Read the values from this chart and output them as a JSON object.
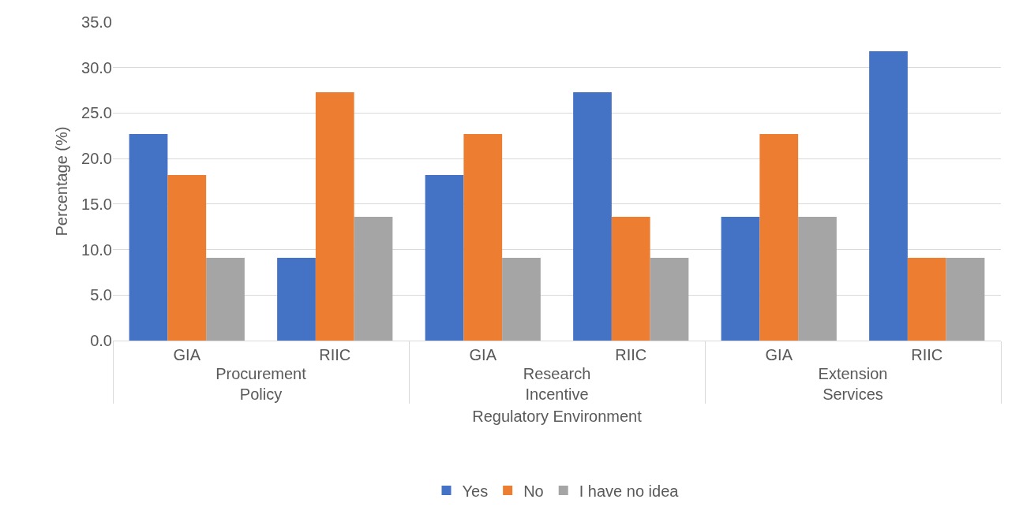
{
  "chart_data": {
    "type": "bar",
    "categories": [
      "GIA",
      "RIIC",
      "GIA",
      "RIIC",
      "GIA",
      "RIIC"
    ],
    "series": [
      {
        "name": "Yes",
        "color": "#4472c4",
        "values": [
          22.7,
          9.1,
          18.2,
          27.3,
          13.6,
          31.8
        ]
      },
      {
        "name": "No",
        "color": "#ed7d31",
        "values": [
          18.2,
          27.3,
          22.7,
          13.6,
          22.7,
          9.1
        ]
      },
      {
        "name": "I have no idea",
        "color": "#a5a5a5",
        "values": [
          9.1,
          13.6,
          9.1,
          9.1,
          13.6,
          9.1
        ]
      }
    ],
    "xlabel": "Regulatory Environment",
    "ylabel": "Percentage (%)",
    "annotations": [
      "Procurement\nPolicy",
      "Research\nIncentive",
      "Extension\nServices"
    ],
    "ylim": [
      0,
      35
    ],
    "yticks": [
      {
        "value": 0,
        "label": "0.0"
      },
      {
        "value": 5,
        "label": "5.0"
      },
      {
        "value": 10,
        "label": "10.0"
      },
      {
        "value": 15,
        "label": "15.0"
      },
      {
        "value": 20,
        "label": "20.0"
      },
      {
        "value": 25,
        "label": "25.0"
      },
      {
        "value": 30,
        "label": "30.0"
      },
      {
        "value": 35,
        "label": "35.0"
      }
    ],
    "grid": "y",
    "legend": "bottom"
  }
}
